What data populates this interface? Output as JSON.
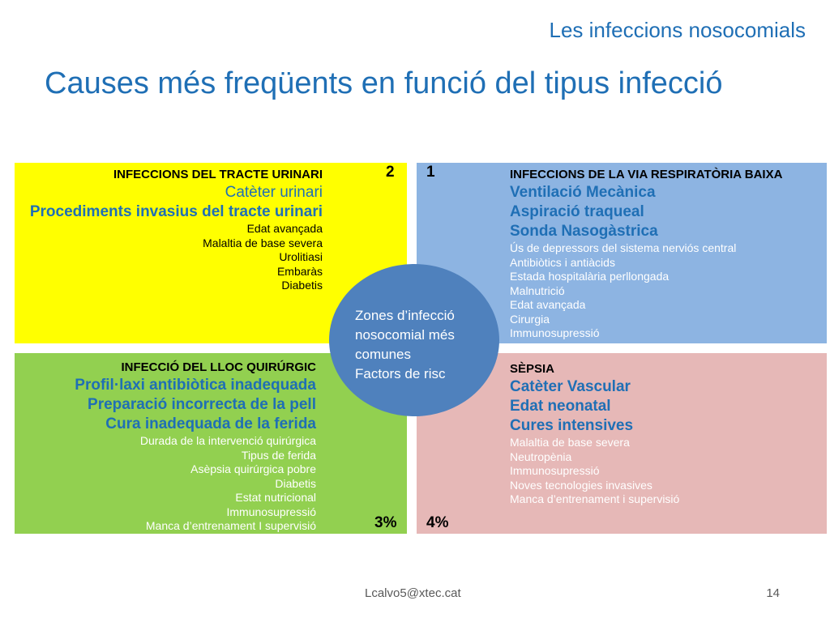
{
  "header": {
    "subtitle": "Les infeccions nosocomials",
    "title": "Causes més freqüents en funció del tipus infecció"
  },
  "urinary": {
    "number": "2",
    "heading": "INFECCIONS DEL TRACTE URINARI",
    "major": [
      "Catèter urinari",
      "Procediments invasius del tracte urinari"
    ],
    "minor": [
      "Edat avançada",
      "Malaltia de base severa",
      "Urolitiasi",
      "Embaràs",
      "Diabetis"
    ]
  },
  "respiratory": {
    "number": "1",
    "heading": "INFECCIONS DE LA VIA RESPIRATÒRIA BAIXA",
    "major": [
      "Ventilació Mecànica",
      "Aspiració traqueal",
      "Sonda Nasogàstrica"
    ],
    "minor": [
      "Ús de depressors del sistema nerviós central",
      "Antibiòtics i antiàcids",
      "Estada hospitalària perllongada",
      "Malnutrició",
      "Edat avançada",
      "Cirurgia",
      "Immunosupressió"
    ]
  },
  "surgical": {
    "number": "3%",
    "heading": "INFECCIÓ DEL LLOC QUIRÚRGIC",
    "major": [
      "Profil·laxi antibiòtica inadequada",
      "Preparació incorrecta de la pell",
      "Cura inadequada de la ferida"
    ],
    "minor": [
      "Durada de la intervenció quirúrgica",
      "Tipus de ferida",
      "Asèpsia quirúrgica pobre",
      "Diabetis",
      "Estat nutricional",
      "Immunosupressió",
      "Manca d’entrenament I supervisió"
    ]
  },
  "sepsis": {
    "number": "4%",
    "heading": "SÈPSIA",
    "major": [
      "Catèter Vascular",
      "Edat neonatal",
      "Cures intensives"
    ],
    "minor": [
      "Malaltia de base severa",
      "Neutropènia",
      "Immunosupressió",
      "Noves tecnologies invasives",
      "Manca d’entrenament i supervisió"
    ]
  },
  "center": {
    "lines": [
      "Zones d’infecció",
      "nosocomial més",
      "comunes",
      "Factors de risc"
    ]
  },
  "footer": {
    "email": "Lcalvo5@xtec.cat",
    "page": "14"
  },
  "colors": {
    "title_blue": "#1f6fb5",
    "yellow": "#ffff00",
    "blue": "#8db4e2",
    "green": "#92d050",
    "pink": "#e6b8b7",
    "circle": "#4f81bd"
  }
}
